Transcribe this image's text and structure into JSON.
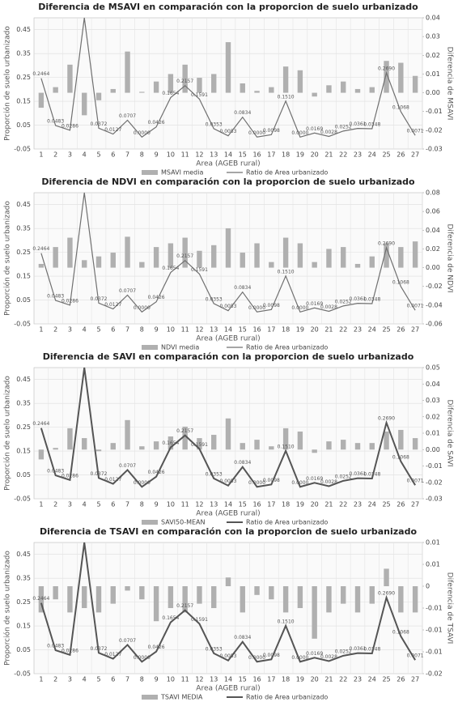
{
  "chart_data": [
    {
      "type": "combo",
      "title": "Diferencia de MSAVI en comparación con la proporcion de suelo urbanizado",
      "x_label": "Area (AGEB rural)",
      "y_label": "Proporción de suelo urbanizado",
      "y2_label": "Diferencia de MSAVI",
      "categories": [
        "1",
        "2",
        "3",
        "4",
        "5",
        "6",
        "7",
        "8",
        "9",
        "10",
        "11",
        "12",
        "13",
        "14",
        "15",
        "16",
        "17",
        "18",
        "19",
        "20",
        "21",
        "22",
        "23",
        "24",
        "25",
        "26",
        "27"
      ],
      "ylim": [
        -0.05,
        0.5
      ],
      "yticks": [
        -0.05,
        0.05,
        0.15,
        0.25,
        0.35,
        0.45
      ],
      "y2lim": [
        -0.03,
        0.04
      ],
      "y2ticks": [
        -0.03,
        -0.02,
        -0.01,
        {
          "value": 0,
          "label": "0.00"
        },
        0.01,
        0.02,
        0.03,
        0.04
      ],
      "grid": true,
      "series": [
        {
          "name": "MSAVI media",
          "type": "bar",
          "axis": "y2",
          "color": "#b0b0b0",
          "values": [
            -0.008,
            0.003,
            0.015,
            -0.012,
            -0.004,
            0.002,
            0.022,
            0.0005,
            0.006,
            0.01,
            0.015,
            0.008,
            0.01,
            0.027,
            0.005,
            0.001,
            0.003,
            0.014,
            0.012,
            -0.002,
            0.004,
            0.006,
            0.002,
            0.003,
            0.017,
            0.016,
            0.009
          ]
        },
        {
          "name": "Ratio de Area urbanizado",
          "type": "line",
          "color": "#707070",
          "width": 1.2,
          "values": [
            0.2464,
            0.0483,
            0.0286,
            0.5,
            0.0372,
            0.0127,
            0.0707,
            0,
            0.0426,
            0.1654,
            0.2157,
            0.1591,
            0.0353,
            0.0053,
            0.0834,
            0,
            0.0098,
            0.151,
            0,
            0.0169,
            0.0028,
            0.0252,
            0.0361,
            0.0348,
            0.269,
            0.1068,
            0.0071
          ],
          "value_labels": [
            "0.2464",
            "0.0483",
            "0.0286",
            null,
            "0.0372",
            "0.0127",
            "0.0707",
            "0.0000",
            "0.0426",
            "0.1654",
            "0.2157",
            "0.1591",
            "0.0353",
            "0.0053",
            "0.0834",
            "0.0000",
            "0.0098",
            "0.1510",
            "0.0000",
            "0.0169",
            "0.0028",
            "0.0252",
            "0.0361",
            "0.0348",
            "0.2690",
            "0.1068",
            "0.0071"
          ]
        }
      ]
    },
    {
      "type": "combo",
      "title": "Diferencia de NDVI en comparación con la proporcion de suelo urbanizado",
      "x_label": "Area (AGEB rural)",
      "y_label": "Proporción de suelo urbanizado",
      "y2_label": "Diferencia de NDVI",
      "categories": [
        "1",
        "2",
        "3",
        "4",
        "5",
        "6",
        "7",
        "8",
        "9",
        "10",
        "11",
        "12",
        "13",
        "14",
        "15",
        "16",
        "17",
        "18",
        "19",
        "20",
        "21",
        "22",
        "23",
        "24",
        "25",
        "26",
        "27"
      ],
      "ylim": [
        -0.05,
        0.5
      ],
      "yticks": [
        -0.05,
        0.05,
        0.15,
        0.25,
        0.35,
        0.45
      ],
      "y2lim": [
        -0.06,
        0.08
      ],
      "y2ticks": [
        -0.06,
        -0.04,
        -0.02,
        {
          "value": 0,
          "label": "0.00"
        },
        0.02,
        0.04,
        0.06,
        0.08
      ],
      "grid": true,
      "series": [
        {
          "name": "NDVI media",
          "type": "bar",
          "axis": "y2",
          "color": "#b0b0b0",
          "values": [
            0.004,
            0.022,
            0.032,
            0.008,
            0.012,
            0.016,
            0.033,
            0.006,
            0.022,
            0.026,
            0.032,
            0.018,
            0.024,
            0.042,
            0.016,
            0.026,
            0.006,
            0.032,
            0.026,
            0.006,
            0.02,
            0.022,
            0.004,
            0.012,
            0.026,
            0.022,
            0.028
          ]
        },
        {
          "name": "Ratio de Area urbanizado",
          "type": "line",
          "color": "#707070",
          "width": 1.2,
          "values": [
            0.2464,
            0.0483,
            0.0286,
            0.5,
            0.0372,
            0.0127,
            0.0707,
            0,
            0.0426,
            0.1654,
            0.2157,
            0.1591,
            0.0353,
            0.0053,
            0.0834,
            0,
            0.0098,
            0.151,
            0,
            0.0169,
            0.0028,
            0.0252,
            0.0361,
            0.0348,
            0.269,
            0.1068,
            0.0071
          ],
          "value_labels": [
            "0.2464",
            "0.0483",
            "0.0286",
            null,
            "0.0372",
            "0.0127",
            "0.0707",
            "0.0000",
            "0.0426",
            "0.1654",
            "0.2157",
            "0.1591",
            "0.0353",
            "0.0053",
            "0.0834",
            "0.0000",
            "0.0098",
            "0.1510",
            "0.0000",
            "0.0169",
            "0.0028",
            "0.0252",
            "0.0361",
            "0.0348",
            "0.2690",
            "0.1068",
            "0.0071"
          ]
        }
      ]
    },
    {
      "type": "combo",
      "title": "Diferencia de SAVI en comparación con la proporcion de suelo urbanizado",
      "x_label": "Area (AGEB rural)",
      "y_label": "Proporción de suelo urbanizado",
      "y2_label": "Diferencia de SAVI",
      "categories": [
        "1",
        "2",
        "3",
        "4",
        "5",
        "6",
        "7",
        "8",
        "9",
        "10",
        "11",
        "12",
        "13",
        "14",
        "15",
        "16",
        "17",
        "18",
        "19",
        "20",
        "21",
        "22",
        "23",
        "24",
        "25",
        "26",
        "27"
      ],
      "ylim": [
        -0.05,
        0.5
      ],
      "yticks": [
        -0.05,
        0.05,
        0.15,
        0.25,
        0.35,
        0.45
      ],
      "y2lim": [
        -0.03,
        0.05
      ],
      "y2ticks": [
        -0.03,
        -0.02,
        -0.01,
        {
          "value": 0,
          "label": "0.00"
        },
        0.01,
        0.02,
        0.03,
        0.04,
        0.05
      ],
      "grid": true,
      "series": [
        {
          "name": "SAVI50-MEAN",
          "type": "bar",
          "axis": "y2",
          "color": "#b0b0b0",
          "values": [
            -0.006,
            0.001,
            0.013,
            0.007,
            -0.001,
            0.004,
            0.018,
            0.002,
            0.005,
            0.008,
            0.014,
            0.007,
            0.009,
            0.019,
            0.004,
            0.006,
            0.002,
            0.013,
            0.011,
            -0.002,
            0.005,
            0.006,
            0.004,
            0.004,
            0.011,
            0.012,
            0.007
          ]
        },
        {
          "name": "Ratio de Area urbanizado",
          "type": "line",
          "color": "#555555",
          "width": 2,
          "values": [
            0.2464,
            0.0483,
            0.0286,
            0.5,
            0.0372,
            0.0127,
            0.0707,
            0,
            0.0426,
            0.1654,
            0.2157,
            0.1591,
            0.0353,
            0.0053,
            0.0834,
            0,
            0.0098,
            0.151,
            0,
            0.0169,
            0.0028,
            0.0252,
            0.0361,
            0.0348,
            0.269,
            0.1068,
            0.0071
          ],
          "value_labels": [
            "0.2464",
            "0.0483",
            "0.0286",
            null,
            "0.0372",
            "0.0127",
            "0.0707",
            "0.0000",
            "0.0426",
            "0.1654",
            "0.2157",
            "0.1591",
            "0.0353",
            "0.0053",
            "0.0834",
            "0.0000",
            "0.0098",
            "0.1510",
            "0.0000",
            "0.0169",
            "0.0028",
            "0.0252",
            "0.0361",
            "0.0348",
            "0.2690",
            "0.1068",
            "0.0071"
          ]
        }
      ]
    },
    {
      "type": "combo",
      "title": "Diferencia de TSAVI en comparación con la proporcion de suelo urbanizado",
      "x_label": "Area (AGEB rural)",
      "y_label": "Proporción de suelo urbanizado",
      "y2_label": "Diferencia de TSAVI",
      "categories": [
        "1",
        "2",
        "3",
        "4",
        "5",
        "6",
        "7",
        "8",
        "9",
        "10",
        "11",
        "12",
        "13",
        "14",
        "15",
        "16",
        "17",
        "18",
        "19",
        "20",
        "21",
        "22",
        "23",
        "24",
        "25",
        "26",
        "27"
      ],
      "ylim": [
        -0.05,
        0.5
      ],
      "yticks": [
        -0.05,
        0.05,
        0.15,
        0.25,
        0.35,
        0.45
      ],
      "y2lim": [
        -0.02,
        0.01
      ],
      "y2ticks": [
        -0.02,
        {
          "value": -0.015,
          "label": "-0.01"
        },
        -0.01,
        {
          "value": -0.005,
          "label": "-0.01"
        },
        0,
        {
          "value": 0.005,
          "label": "0.01"
        },
        0.01
      ],
      "grid": true,
      "series": [
        {
          "name": "TSAVI MEDIA",
          "type": "bar",
          "axis": "y2",
          "color": "#b0b0b0",
          "values": [
            -0.006,
            -0.003,
            -0.006,
            -0.005,
            -0.006,
            -0.004,
            -0.001,
            -0.003,
            -0.008,
            -0.005,
            -0.006,
            -0.004,
            -0.005,
            0.002,
            -0.006,
            -0.002,
            -0.003,
            -0.006,
            -0.005,
            -0.012,
            -0.006,
            -0.004,
            -0.006,
            -0.004,
            0.004,
            -0.006,
            -0.006
          ]
        },
        {
          "name": "Ratio de Area urbanizado",
          "type": "line",
          "color": "#555555",
          "width": 2,
          "values": [
            0.2464,
            0.0483,
            0.0286,
            0.5,
            0.0372,
            0.0127,
            0.0707,
            0,
            0.0426,
            0.1654,
            0.2157,
            0.1591,
            0.0353,
            0.0053,
            0.0834,
            0,
            0.0098,
            0.151,
            0,
            0.0169,
            0.0028,
            0.0252,
            0.0361,
            0.0348,
            0.269,
            0.1068,
            0.0071
          ],
          "value_labels": [
            "0.2464",
            "0.0483",
            "0.0286",
            null,
            "0.0372",
            "0.0127",
            "0.0707",
            "0.0000",
            "0.0426",
            "0.1654",
            "0.2157",
            "0.1591",
            "0.0353",
            "0.0053",
            "0.0834",
            "0.0000",
            "0.0098",
            "0.1510",
            "0.0000",
            "0.0169",
            "0.0028",
            "0.0252",
            "0.0361",
            "0.0348",
            "0.2690",
            "0.1068",
            "0.0071"
          ]
        }
      ]
    }
  ]
}
